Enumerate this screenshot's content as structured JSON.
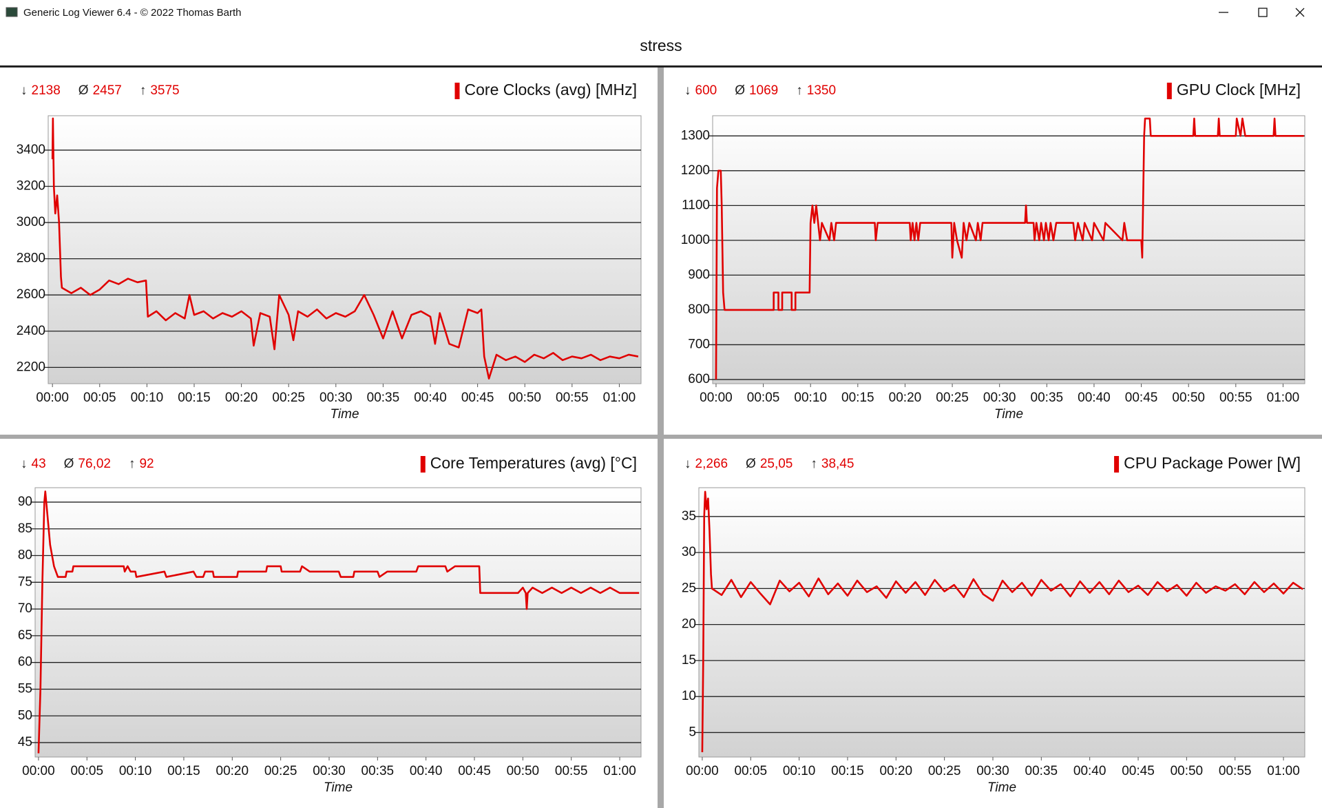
{
  "window": {
    "title": "Generic Log Viewer 6.4 - © 2022 Thomas Barth"
  },
  "header": {
    "title": "stress"
  },
  "chart_data": [
    {
      "type": "line",
      "x_label": "Time",
      "stats": [
        {
          "symbol": "↓",
          "value": "2138"
        },
        {
          "symbol": "Ø",
          "value": "2457"
        },
        {
          "symbol": "↑",
          "value": "3575"
        }
      ],
      "x": [
        0,
        0.05,
        0.15,
        0.3,
        0.5,
        0.7,
        0.9,
        1,
        2,
        3,
        4,
        5,
        6,
        7,
        8,
        9,
        9.9,
        10.1,
        11,
        12,
        13,
        14,
        14.5,
        15,
        16,
        17,
        18,
        19,
        20,
        21,
        21.3,
        22,
        23,
        23.5,
        24,
        25,
        25.5,
        26,
        27,
        28,
        29,
        30,
        31,
        32,
        33,
        34,
        35,
        36,
        37,
        38,
        39,
        40,
        40.5,
        41,
        42,
        43,
        44,
        45,
        45.4,
        45.7,
        46.2,
        47,
        48,
        49,
        50,
        51,
        52,
        53,
        54,
        55,
        56,
        57,
        58,
        59,
        60,
        61,
        62
      ],
      "series": [
        {
          "name": "Core Clocks (avg) [MHz]",
          "color": "#e00000",
          "values": [
            3350,
            3575,
            3200,
            3050,
            3150,
            3000,
            2700,
            2640,
            2610,
            2640,
            2600,
            2630,
            2680,
            2660,
            2690,
            2670,
            2680,
            2480,
            2510,
            2460,
            2500,
            2470,
            2600,
            2490,
            2510,
            2470,
            2500,
            2480,
            2510,
            2470,
            2320,
            2500,
            2480,
            2300,
            2600,
            2490,
            2350,
            2510,
            2480,
            2520,
            2470,
            2500,
            2480,
            2510,
            2600,
            2490,
            2360,
            2510,
            2360,
            2490,
            2510,
            2480,
            2330,
            2500,
            2330,
            2310,
            2520,
            2500,
            2520,
            2260,
            2138,
            2270,
            2240,
            2260,
            2230,
            2270,
            2250,
            2280,
            2240,
            2260,
            2250,
            2270,
            2240,
            2260,
            2250,
            2270,
            2260
          ]
        }
      ],
      "xlim": [
        -0.45,
        62.3
      ],
      "ylim": [
        2110,
        3590
      ],
      "xticks": [
        {
          "value": 0,
          "label": "00:00"
        },
        {
          "value": 5,
          "label": "00:05"
        },
        {
          "value": 10,
          "label": "00:10"
        },
        {
          "value": 15,
          "label": "00:15"
        },
        {
          "value": 20,
          "label": "00:20"
        },
        {
          "value": 25,
          "label": "00:25"
        },
        {
          "value": 30,
          "label": "00:30"
        },
        {
          "value": 35,
          "label": "00:35"
        },
        {
          "value": 40,
          "label": "00:40"
        },
        {
          "value": 45,
          "label": "00:45"
        },
        {
          "value": 50,
          "label": "00:50"
        },
        {
          "value": 55,
          "label": "00:55"
        },
        {
          "value": 60,
          "label": "01:00"
        }
      ],
      "yticks": [
        2200,
        2400,
        2600,
        2800,
        3000,
        3200,
        3400
      ],
      "grid": true
    },
    {
      "type": "line",
      "x_label": "Time",
      "stats": [
        {
          "symbol": "↓",
          "value": "600"
        },
        {
          "symbol": "Ø",
          "value": "1069"
        },
        {
          "symbol": "↑",
          "value": "1350"
        }
      ],
      "x": [
        0,
        0.1,
        0.25,
        0.5,
        0.6,
        0.75,
        0.9,
        6.1,
        6.1,
        6.6,
        6.6,
        7,
        7,
        8,
        8,
        8.4,
        8.4,
        9.9,
        10,
        10.2,
        10.4,
        10.6,
        10.8,
        11,
        11.2,
        12,
        12.2,
        12.5,
        12.7,
        16.8,
        16.9,
        17.1,
        20.5,
        20.6,
        20.8,
        21,
        21.2,
        21.4,
        21.6,
        24.9,
        25,
        25.2,
        25.5,
        26,
        26.2,
        26.5,
        26.8,
        27.5,
        27.7,
        28,
        28.2,
        32.7,
        32.8,
        32.9,
        33.6,
        33.7,
        33.9,
        34.2,
        34.4,
        34.7,
        34.9,
        35.2,
        35.4,
        35.7,
        36,
        37.8,
        38,
        38.3,
        38.8,
        39,
        39.8,
        40,
        41,
        41.2,
        43,
        43.2,
        43.5,
        45,
        45.1,
        45.3,
        45.4,
        45.9,
        46,
        50.5,
        50.6,
        50.7,
        53.1,
        53.2,
        53.3,
        55,
        55.1,
        55.5,
        55.7,
        56,
        59,
        59.1,
        59.2,
        62.2
      ],
      "series": [
        {
          "name": "GPU Clock [MHz]",
          "color": "#e00000",
          "values": [
            600,
            1150,
            1200,
            1200,
            1100,
            850,
            800,
            800,
            850,
            850,
            800,
            800,
            850,
            850,
            800,
            800,
            850,
            850,
            1050,
            1100,
            1050,
            1100,
            1050,
            1000,
            1050,
            1000,
            1050,
            1000,
            1050,
            1050,
            1000,
            1050,
            1050,
            1000,
            1050,
            1000,
            1050,
            1000,
            1050,
            1050,
            950,
            1050,
            1000,
            950,
            1050,
            1000,
            1050,
            1000,
            1050,
            1000,
            1050,
            1050,
            1100,
            1050,
            1050,
            1000,
            1050,
            1000,
            1050,
            1000,
            1050,
            1000,
            1050,
            1000,
            1050,
            1050,
            1000,
            1050,
            1000,
            1050,
            1000,
            1050,
            1000,
            1050,
            1000,
            1050,
            1000,
            1000,
            950,
            1300,
            1350,
            1350,
            1300,
            1300,
            1350,
            1300,
            1300,
            1350,
            1300,
            1300,
            1350,
            1300,
            1350,
            1300,
            1300,
            1350,
            1300,
            1300
          ]
        }
      ],
      "xlim": [
        -0.36,
        62.3
      ],
      "ylim": [
        588,
        1358
      ],
      "xticks": [
        {
          "value": 0,
          "label": "00:00"
        },
        {
          "value": 5,
          "label": "00:05"
        },
        {
          "value": 10,
          "label": "00:10"
        },
        {
          "value": 15,
          "label": "00:15"
        },
        {
          "value": 20,
          "label": "00:20"
        },
        {
          "value": 25,
          "label": "00:25"
        },
        {
          "value": 30,
          "label": "00:30"
        },
        {
          "value": 35,
          "label": "00:35"
        },
        {
          "value": 40,
          "label": "00:40"
        },
        {
          "value": 45,
          "label": "00:45"
        },
        {
          "value": 50,
          "label": "00:50"
        },
        {
          "value": 55,
          "label": "00:55"
        },
        {
          "value": 60,
          "label": "01:00"
        }
      ],
      "yticks": [
        600,
        700,
        800,
        900,
        1000,
        1100,
        1200,
        1300
      ],
      "grid": true
    },
    {
      "type": "line",
      "x_label": "Time",
      "stats": [
        {
          "symbol": "↓",
          "value": "43"
        },
        {
          "symbol": "Ø",
          "value": "76,02"
        },
        {
          "symbol": "↑",
          "value": "92"
        }
      ],
      "x": [
        0,
        0.2,
        0.4,
        0.6,
        0.7,
        0.9,
        1.2,
        1.6,
        2,
        2.8,
        2.9,
        3.5,
        3.6,
        8.8,
        8.9,
        9.2,
        9.5,
        10,
        10.1,
        13,
        13.2,
        16,
        16.3,
        17,
        17.2,
        18,
        18.1,
        20.5,
        20.6,
        23.5,
        23.6,
        25,
        25.1,
        27,
        27.2,
        28,
        31,
        31.2,
        32.5,
        32.6,
        35,
        35.2,
        36,
        39,
        39.2,
        42,
        42.2,
        43,
        45.5,
        45.6,
        49.5,
        50,
        50.3,
        50.4,
        50.5,
        51,
        52,
        53,
        54,
        55,
        56,
        57,
        58,
        59,
        60,
        62
      ],
      "series": [
        {
          "name": "Core Temperatures (avg) [°C]",
          "color": "#e00000",
          "values": [
            43,
            55,
            75,
            90,
            92,
            88,
            82,
            78,
            76,
            76,
            77,
            77,
            78,
            78,
            77,
            78,
            77,
            77,
            76,
            77,
            76,
            77,
            76,
            76,
            77,
            77,
            76,
            76,
            77,
            77,
            78,
            78,
            77,
            77,
            78,
            77,
            77,
            76,
            76,
            77,
            77,
            76,
            77,
            77,
            78,
            78,
            77,
            78,
            78,
            73,
            73,
            74,
            73,
            70,
            73,
            74,
            73,
            74,
            73,
            74,
            73,
            74,
            73,
            74,
            73,
            73
          ]
        }
      ],
      "xlim": [
        -0.35,
        62.2
      ],
      "ylim": [
        42.3,
        92.7
      ],
      "xticks": [
        {
          "value": 0,
          "label": "00:00"
        },
        {
          "value": 5,
          "label": "00:05"
        },
        {
          "value": 10,
          "label": "00:10"
        },
        {
          "value": 15,
          "label": "00:15"
        },
        {
          "value": 20,
          "label": "00:20"
        },
        {
          "value": 25,
          "label": "00:25"
        },
        {
          "value": 30,
          "label": "00:30"
        },
        {
          "value": 35,
          "label": "00:35"
        },
        {
          "value": 40,
          "label": "00:40"
        },
        {
          "value": 45,
          "label": "00:45"
        },
        {
          "value": 50,
          "label": "00:50"
        },
        {
          "value": 55,
          "label": "00:55"
        },
        {
          "value": 60,
          "label": "01:00"
        }
      ],
      "yticks": [
        45,
        50,
        55,
        60,
        65,
        70,
        75,
        80,
        85,
        90
      ],
      "grid": true
    },
    {
      "type": "line",
      "x_label": "Time",
      "stats": [
        {
          "symbol": "↓",
          "value": "2,266"
        },
        {
          "symbol": "Ø",
          "value": "25,05"
        },
        {
          "symbol": "↑",
          "value": "38,45"
        }
      ],
      "x": [
        0,
        0.1,
        0.2,
        0.3,
        0.45,
        0.6,
        0.75,
        0.9,
        1,
        2,
        3,
        4,
        5,
        6,
        7,
        8,
        9,
        10,
        11,
        12,
        13,
        14,
        15,
        16,
        17,
        18,
        19,
        20,
        21,
        22,
        23,
        24,
        25,
        26,
        27,
        28,
        29,
        30,
        31,
        32,
        33,
        34,
        35,
        36,
        37,
        38,
        39,
        40,
        41,
        42,
        43,
        44,
        45,
        46,
        47,
        48,
        49,
        50,
        51,
        52,
        53,
        54,
        55,
        56,
        57,
        58,
        59,
        60,
        61,
        62
      ],
      "series": [
        {
          "name": "CPU Package Power [W]",
          "color": "#e00000",
          "values": [
            2.266,
            15,
            35,
            38.45,
            36,
            37.5,
            33,
            27,
            25,
            24.1,
            26.2,
            23.8,
            25.9,
            24.3,
            22.8,
            26.1,
            24.6,
            25.8,
            23.9,
            26.4,
            24.2,
            25.7,
            24.0,
            26.1,
            24.5,
            25.3,
            23.7,
            26.0,
            24.4,
            25.9,
            24.1,
            26.2,
            24.6,
            25.5,
            23.8,
            26.3,
            24.2,
            23.3,
            26.1,
            24.5,
            25.8,
            24.0,
            26.2,
            24.7,
            25.6,
            23.9,
            26.0,
            24.4,
            25.9,
            24.2,
            26.1,
            24.5,
            25.4,
            24.1,
            25.9,
            24.6,
            25.5,
            24.0,
            25.8,
            24.4,
            25.3,
            24.7,
            25.6,
            24.2,
            25.9,
            24.5,
            25.7,
            24.3,
            25.8,
            24.9
          ]
        }
      ],
      "xlim": [
        -0.35,
        62.2
      ],
      "ylim": [
        1.6,
        39
      ],
      "xticks": [
        {
          "value": 0,
          "label": "00:00"
        },
        {
          "value": 5,
          "label": "00:05"
        },
        {
          "value": 10,
          "label": "00:10"
        },
        {
          "value": 15,
          "label": "00:15"
        },
        {
          "value": 20,
          "label": "00:20"
        },
        {
          "value": 25,
          "label": "00:25"
        },
        {
          "value": 30,
          "label": "00:30"
        },
        {
          "value": 35,
          "label": "00:35"
        },
        {
          "value": 40,
          "label": "00:40"
        },
        {
          "value": 45,
          "label": "00:45"
        },
        {
          "value": 50,
          "label": "00:50"
        },
        {
          "value": 55,
          "label": "00:55"
        },
        {
          "value": 60,
          "label": "01:00"
        }
      ],
      "yticks": [
        5,
        10,
        15,
        20,
        25,
        30,
        35
      ],
      "grid": true
    }
  ]
}
